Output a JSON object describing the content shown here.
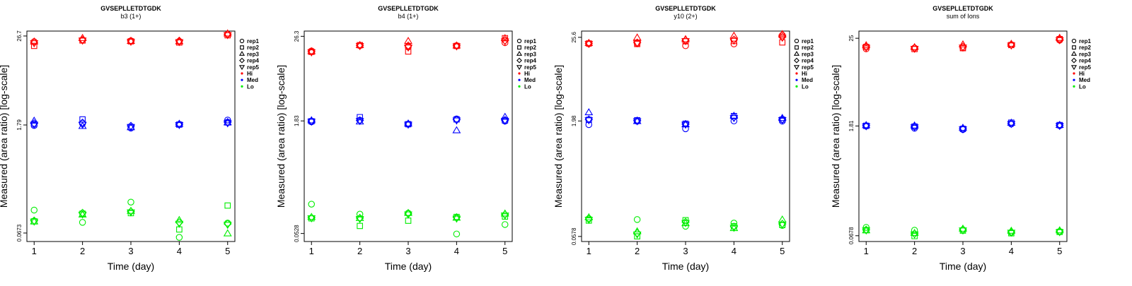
{
  "figure": {
    "legend": {
      "placement": "right",
      "replicate_entries": [
        {
          "label": "rep1",
          "shape": "circle"
        },
        {
          "label": "rep2",
          "shape": "square"
        },
        {
          "label": "rep3",
          "shape": "triangle-up"
        },
        {
          "label": "rep4",
          "shape": "diamond"
        },
        {
          "label": "rep5",
          "shape": "triangle-down"
        }
      ],
      "group_entries": [
        {
          "label": "Hi",
          "color": "#ff0000"
        },
        {
          "label": "Med",
          "color": "#0000ff"
        },
        {
          "label": "Lo",
          "color": "#00ee00"
        }
      ]
    }
  },
  "chart_data": [
    {
      "type": "scatter",
      "title": "GVSEPLLETDTGDK",
      "subtitle": "b3 (1+)",
      "xlabel": "Time (day)",
      "ylabel": "Measured (area ratio) [log-scale]",
      "log_y": true,
      "grid": false,
      "x_ticks": [
        1,
        2,
        3,
        4,
        5
      ],
      "y_ticks": [
        0.0673,
        1.79,
        26.7
      ],
      "y_tick_labels": [
        "0.0673",
        "1.79",
        "26.7"
      ],
      "xlim": [
        0.85,
        5.15
      ],
      "ylim": [
        0.052,
        31
      ],
      "x": [
        1,
        2,
        3,
        4,
        5
      ],
      "series": [
        {
          "group": "Hi",
          "replicate": "rep1",
          "values": [
            22.5,
            23.8,
            23.1,
            22.7,
            28.2
          ]
        },
        {
          "group": "Hi",
          "replicate": "rep2",
          "values": [
            19.8,
            23.3,
            22.7,
            21.9,
            27.3
          ]
        },
        {
          "group": "Hi",
          "replicate": "rep3",
          "values": [
            22.4,
            24.9,
            22.8,
            22.5,
            28.6
          ]
        },
        {
          "group": "Hi",
          "replicate": "rep4",
          "values": [
            21.9,
            23.6,
            23.0,
            23.1,
            28.1
          ]
        },
        {
          "group": "Hi",
          "replicate": "rep5",
          "values": [
            21.6,
            23.4,
            22.6,
            22.4,
            27.7
          ]
        },
        {
          "group": "Med",
          "replicate": "rep1",
          "values": [
            1.76,
            1.87,
            1.63,
            1.82,
            2.08
          ]
        },
        {
          "group": "Med",
          "replicate": "rep2",
          "values": [
            1.83,
            2.12,
            1.68,
            1.81,
            1.93
          ]
        },
        {
          "group": "Med",
          "replicate": "rep3",
          "values": [
            2.02,
            1.72,
            1.66,
            1.84,
            1.92
          ]
        },
        {
          "group": "Med",
          "replicate": "rep4",
          "values": [
            1.88,
            1.92,
            1.74,
            1.83,
            1.95
          ]
        },
        {
          "group": "Med",
          "replicate": "rep5",
          "values": [
            1.82,
            1.82,
            1.7,
            1.8,
            1.9
          ]
        },
        {
          "group": "Lo",
          "replicate": "rep1",
          "values": [
            0.135,
            0.093,
            0.172,
            0.059,
            0.091
          ]
        },
        {
          "group": "Lo",
          "replicate": "rep2",
          "values": [
            0.096,
            0.121,
            0.123,
            0.075,
            0.155
          ]
        },
        {
          "group": "Lo",
          "replicate": "rep3",
          "values": [
            0.095,
            0.117,
            0.131,
            0.099,
            0.066
          ]
        },
        {
          "group": "Lo",
          "replicate": "rep4",
          "values": [
            0.098,
            0.124,
            0.13,
            0.093,
            0.089
          ]
        },
        {
          "group": "Lo",
          "replicate": "rep5",
          "values": [
            0.096,
            0.119,
            0.127,
            0.09,
            0.087
          ]
        }
      ]
    },
    {
      "type": "scatter",
      "title": "GVSEPLLETDTGDK",
      "subtitle": "b4 (1+)",
      "xlabel": "Time (day)",
      "ylabel": "Measured (area ratio) [log-scale]",
      "log_y": true,
      "grid": false,
      "x_ticks": [
        1,
        2,
        3,
        4,
        5
      ],
      "y_ticks": [
        0.0528,
        1.83,
        26.3
      ],
      "y_tick_labels": [
        "0.0528",
        "1.83",
        "26.3"
      ],
      "xlim": [
        0.85,
        5.15
      ],
      "ylim": [
        0.041,
        31
      ],
      "x": [
        1,
        2,
        3,
        4,
        5
      ],
      "series": [
        {
          "group": "Hi",
          "replicate": "rep1",
          "values": [
            16.6,
            19.6,
            18.8,
            19.6,
            21.5
          ]
        },
        {
          "group": "Hi",
          "replicate": "rep2",
          "values": [
            16.1,
            19.9,
            16.3,
            19.4,
            24.8
          ]
        },
        {
          "group": "Hi",
          "replicate": "rep3",
          "values": [
            16.3,
            19.8,
            22.5,
            19.5,
            24.6
          ]
        },
        {
          "group": "Hi",
          "replicate": "rep4",
          "values": [
            16.2,
            19.7,
            19.6,
            19.5,
            23.0
          ]
        },
        {
          "group": "Hi",
          "replicate": "rep5",
          "values": [
            16.0,
            19.5,
            18.6,
            19.3,
            22.6
          ]
        },
        {
          "group": "Med",
          "replicate": "rep1",
          "values": [
            1.78,
            1.87,
            1.65,
            1.95,
            1.82
          ]
        },
        {
          "group": "Med",
          "replicate": "rep2",
          "values": [
            1.81,
            2.06,
            1.65,
            1.92,
            1.86
          ]
        },
        {
          "group": "Med",
          "replicate": "rep3",
          "values": [
            1.85,
            1.78,
            1.67,
            1.35,
            2.06
          ]
        },
        {
          "group": "Med",
          "replicate": "rep4",
          "values": [
            1.82,
            1.86,
            1.66,
            1.9,
            1.88
          ]
        },
        {
          "group": "Med",
          "replicate": "rep5",
          "values": [
            1.8,
            1.84,
            1.64,
            1.87,
            1.85
          ]
        },
        {
          "group": "Lo",
          "replicate": "rep1",
          "values": [
            0.133,
            0.097,
            0.1,
            0.052,
            0.07
          ]
        },
        {
          "group": "Lo",
          "replicate": "rep2",
          "values": [
            0.085,
            0.067,
            0.079,
            0.089,
            0.09
          ]
        },
        {
          "group": "Lo",
          "replicate": "rep3",
          "values": [
            0.088,
            0.085,
            0.1,
            0.086,
            0.098
          ]
        },
        {
          "group": "Lo",
          "replicate": "rep4",
          "values": [
            0.087,
            0.086,
            0.098,
            0.088,
            0.096
          ]
        },
        {
          "group": "Lo",
          "replicate": "rep5",
          "values": [
            0.086,
            0.084,
            0.097,
            0.085,
            0.094
          ]
        }
      ]
    },
    {
      "type": "scatter",
      "title": "GVSEPLLETDTGDK",
      "subtitle": "y10 (2+)",
      "xlabel": "Time (day)",
      "ylabel": "Measured (area ratio) [log-scale]",
      "log_y": true,
      "grid": false,
      "x_ticks": [
        1,
        2,
        3,
        4,
        5
      ],
      "y_ticks": [
        0.0578,
        1.98,
        25.6
      ],
      "y_tick_labels": [
        "0.0578",
        "1.98",
        "25.6"
      ],
      "xlim": [
        0.85,
        5.15
      ],
      "ylim": [
        0.0495,
        31
      ],
      "x": [
        1,
        2,
        3,
        4,
        5
      ],
      "series": [
        {
          "group": "Hi",
          "replicate": "rep1",
          "values": [
            21.0,
            21.3,
            19.8,
            20.9,
            27.3
          ]
        },
        {
          "group": "Hi",
          "replicate": "rep2",
          "values": [
            21.2,
            20.9,
            22.7,
            22.9,
            21.9
          ]
        },
        {
          "group": "Hi",
          "replicate": "rep3",
          "values": [
            21.4,
            25.2,
            24.0,
            26.6,
            28.0
          ]
        },
        {
          "group": "Hi",
          "replicate": "rep4",
          "values": [
            21.3,
            21.8,
            23.3,
            23.8,
            25.9
          ]
        },
        {
          "group": "Hi",
          "replicate": "rep5",
          "values": [
            21.1,
            21.5,
            23.0,
            23.4,
            25.5
          ]
        },
        {
          "group": "Med",
          "replicate": "rep1",
          "values": [
            1.77,
            1.96,
            1.56,
            1.98,
            1.97
          ]
        },
        {
          "group": "Med",
          "replicate": "rep2",
          "values": [
            2.05,
            2.02,
            1.82,
            2.3,
            2.06
          ]
        },
        {
          "group": "Med",
          "replicate": "rep3",
          "values": [
            2.56,
            1.96,
            1.77,
            2.3,
            2.15
          ]
        },
        {
          "group": "Med",
          "replicate": "rep4",
          "values": [
            2.07,
            2.0,
            1.8,
            2.22,
            2.08
          ]
        },
        {
          "group": "Med",
          "replicate": "rep5",
          "values": [
            2.04,
            1.98,
            1.78,
            2.18,
            2.05
          ]
        },
        {
          "group": "Lo",
          "replicate": "rep1",
          "values": [
            0.1,
            0.097,
            0.079,
            0.087,
            0.081
          ]
        },
        {
          "group": "Lo",
          "replicate": "rep2",
          "values": [
            0.094,
            0.058,
            0.095,
            0.079,
            0.082
          ]
        },
        {
          "group": "Lo",
          "replicate": "rep3",
          "values": [
            0.103,
            0.067,
            0.086,
            0.074,
            0.096
          ]
        },
        {
          "group": "Lo",
          "replicate": "rep4",
          "values": [
            0.098,
            0.064,
            0.09,
            0.078,
            0.085
          ]
        },
        {
          "group": "Lo",
          "replicate": "rep5",
          "values": [
            0.097,
            0.062,
            0.088,
            0.076,
            0.084
          ]
        }
      ]
    },
    {
      "type": "scatter",
      "title": "GVSEPLLETDTGDK",
      "subtitle": "sum of Ions",
      "xlabel": "Time (day)",
      "ylabel": "Measured (area ratio) [log-scale]",
      "log_y": true,
      "grid": false,
      "x_ticks": [
        1,
        2,
        3,
        4,
        5
      ],
      "y_ticks": [
        0.0678,
        1.81,
        25
      ],
      "y_tick_labels": [
        "0.0678",
        "1.81",
        "25"
      ],
      "xlim": [
        0.85,
        5.15
      ],
      "ylim": [
        0.057,
        31
      ],
      "x": [
        1,
        2,
        3,
        4,
        5
      ],
      "series": [
        {
          "group": "Hi",
          "replicate": "rep1",
          "values": [
            18.2,
            18.7,
            18.7,
            20.6,
            23.6
          ]
        },
        {
          "group": "Hi",
          "replicate": "rep2",
          "values": [
            19.3,
            18.1,
            18.6,
            20.4,
            24.4
          ]
        },
        {
          "group": "Hi",
          "replicate": "rep3",
          "values": [
            20.1,
            19.0,
            20.6,
            21.0,
            25.1
          ]
        },
        {
          "group": "Hi",
          "replicate": "rep4",
          "values": [
            19.4,
            18.6,
            19.4,
            20.6,
            24.2
          ]
        },
        {
          "group": "Hi",
          "replicate": "rep5",
          "values": [
            19.0,
            18.4,
            19.1,
            20.3,
            23.8
          ]
        },
        {
          "group": "Med",
          "replicate": "rep1",
          "values": [
            1.8,
            1.69,
            1.63,
            1.92,
            1.83
          ]
        },
        {
          "group": "Med",
          "replicate": "rep2",
          "values": [
            1.82,
            1.78,
            1.66,
            2.0,
            1.86
          ]
        },
        {
          "group": "Med",
          "replicate": "rep3",
          "values": [
            1.84,
            1.82,
            1.7,
            1.98,
            1.85
          ]
        },
        {
          "group": "Med",
          "replicate": "rep4",
          "values": [
            1.83,
            1.77,
            1.67,
            1.96,
            1.85
          ]
        },
        {
          "group": "Med",
          "replicate": "rep5",
          "values": [
            1.81,
            1.75,
            1.65,
            1.94,
            1.83
          ]
        },
        {
          "group": "Lo",
          "replicate": "rep1",
          "values": [
            0.087,
            0.08,
            0.081,
            0.075,
            0.077
          ]
        },
        {
          "group": "Lo",
          "replicate": "rep2",
          "values": [
            0.08,
            0.067,
            0.079,
            0.073,
            0.076
          ]
        },
        {
          "group": "Lo",
          "replicate": "rep3",
          "values": [
            0.079,
            0.073,
            0.083,
            0.078,
            0.079
          ]
        },
        {
          "group": "Lo",
          "replicate": "rep4",
          "values": [
            0.081,
            0.072,
            0.081,
            0.076,
            0.077
          ]
        },
        {
          "group": "Lo",
          "replicate": "rep5",
          "values": [
            0.08,
            0.071,
            0.08,
            0.075,
            0.076
          ]
        }
      ]
    }
  ]
}
